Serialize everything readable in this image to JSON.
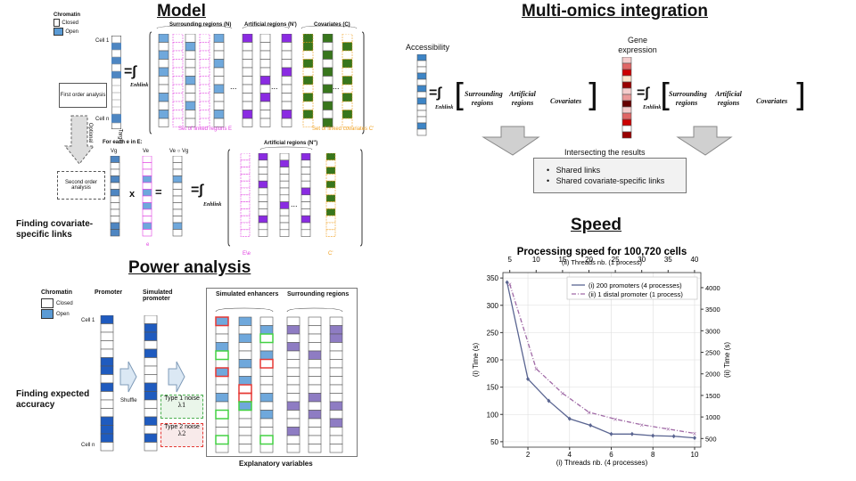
{
  "model": {
    "title": "Model",
    "chromatin_label": "Chromatin",
    "closed": "Closed",
    "open": "Open",
    "cell1": "Cell 1",
    "celln": "Cell n",
    "target": "Target",
    "first_order": "First order analysis",
    "optional": "Optional",
    "second_order": "Second order analysis",
    "surrounding": "Surrounding regions (N)",
    "artificial": "Artificial regions (N')",
    "covariates": "Covariates (C)",
    "set_linked": "Set of linked regions E",
    "set_cov": "Set of linked covariates C'",
    "for_each": "For each e in E:",
    "artificial2": "Artificial regions (N'')",
    "vg": "Vg",
    "ve": "Ve",
    "vevg": "Ve ○ Vg",
    "x": "x",
    "e": "e",
    "e1e": "E\\e",
    "cprime": "C'",
    "enhlink": "Enhlink",
    "dots": "...",
    "finding_cov": "Finding covariate-specific links"
  },
  "power": {
    "title": "Power analysis",
    "chromatin": "Chromatin",
    "closed": "Closed",
    "open": "Open",
    "promoter": "Promoter",
    "sim_promoter": "Simulated promoter",
    "sim_enh": "Simulated enhancers",
    "surr": "Surrounding regions",
    "cell1": "Cell 1",
    "celln": "Cell n",
    "shuffle": "Shuffle",
    "type1": "Type 1 noise",
    "lambda1": "λ1",
    "type2": "Type 2 noise",
    "lambda2": "λ2",
    "explanatory": "Explanatory variables",
    "finding_acc": "Finding expected accuracy"
  },
  "multi": {
    "title": "Multi-omics integration",
    "accessibility": "Accessibility",
    "gene_expr": "Gene expression",
    "enhlink": "Enhlink",
    "surrounding": "Surrounding regions",
    "artificial": "Artificial regions",
    "covariates": "Covariates",
    "comma": ",",
    "intersect": "Intersecting the results",
    "shared_links": "Shared links",
    "shared_cov": "Shared covariate-specific links"
  },
  "speed": {
    "title": "Speed"
  },
  "chart_data": {
    "type": "line",
    "title": "Processing speed for 100,720 cells",
    "xlabel": "(i) Threads nb. (4 processes)",
    "x2label": "(ii) Threads nb. (1 process)",
    "ylabel": "(i) Time (s)",
    "y2label": "(ii) Time (s)",
    "xlim": [
      0.8,
      10.3
    ],
    "ylim": [
      40,
      360
    ],
    "x2lim": [
      3.7,
      41.2
    ],
    "y2lim": [
      300,
      4350
    ],
    "xticks": [
      2,
      4,
      6,
      8,
      10
    ],
    "yticks": [
      50,
      100,
      150,
      200,
      250,
      300,
      350
    ],
    "x2ticks": [
      5,
      10,
      15,
      20,
      25,
      30,
      35,
      40
    ],
    "y2ticks": [
      500,
      1000,
      1500,
      2000,
      2500,
      3000,
      3500,
      4000
    ],
    "legend": "top-right",
    "grid": true,
    "series": [
      {
        "name": "(i) 200 promoters (4 processes)",
        "color": "#5a6591",
        "axis": "primary",
        "x": [
          1,
          2,
          3,
          4,
          5,
          6,
          7,
          8,
          9,
          10
        ],
        "y": [
          342,
          165,
          125,
          92,
          80,
          64,
          64,
          61,
          60,
          57
        ]
      },
      {
        "name": "(ii) 1 distal promoter (1 process)",
        "color": "#a06aa6",
        "axis": "secondary",
        "x": [
          5,
          10,
          15,
          20,
          25,
          30,
          35,
          40
        ],
        "y": [
          4080,
          2120,
          1550,
          1110,
          950,
          820,
          720,
          620
        ]
      }
    ]
  }
}
